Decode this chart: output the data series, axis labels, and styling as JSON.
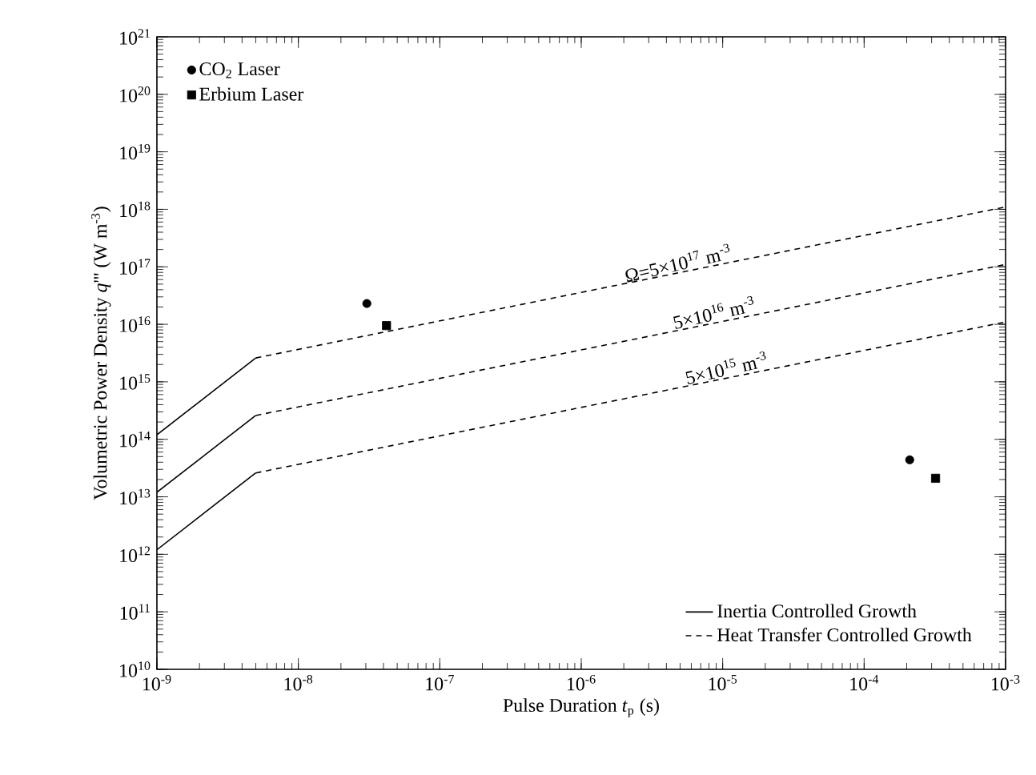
{
  "chart_data": {
    "type": "line",
    "xlabel": "Pulse Duration *t*$_{p}$ (s)",
    "ylabel": "Volumetric  Power Density *q*''' (W m$^{-3}$)",
    "log": "xy",
    "xlim": [
      1e-09,
      0.001
    ],
    "ylim": [
      10000000000.0,
      1e+21
    ],
    "xticks": [
      {
        "value": 1e-09,
        "label": "10$^{-9}$"
      },
      {
        "value": 1e-08,
        "label": "10$^{-8}$"
      },
      {
        "value": 1e-07,
        "label": "10$^{-7}$"
      },
      {
        "value": 1e-06,
        "label": "10$^{-6}$"
      },
      {
        "value": 1e-05,
        "label": "10$^{-5}$"
      },
      {
        "value": 0.0001,
        "label": "10$^{-4}$"
      },
      {
        "value": 0.001,
        "label": "10$^{-3}$"
      }
    ],
    "yticks": [
      {
        "value": 10000000000.0,
        "label": "10$^{10}$"
      },
      {
        "value": 100000000000.0,
        "label": "10$^{11}$"
      },
      {
        "value": 1000000000000.0,
        "label": "10$^{12}$"
      },
      {
        "value": 10000000000000.0,
        "label": "10$^{13}$"
      },
      {
        "value": 100000000000000.0,
        "label": "10$^{14}$"
      },
      {
        "value": 1000000000000000.0,
        "label": "10$^{15}$"
      },
      {
        "value": 1e+16,
        "label": "10$^{16}$"
      },
      {
        "value": 1e+17,
        "label": "10$^{17}$"
      },
      {
        "value": 1e+18,
        "label": "10$^{18}$"
      },
      {
        "value": 1e+19,
        "label": "10$^{19}$"
      },
      {
        "value": 1e+20,
        "label": "10$^{20}$"
      },
      {
        "value": 1e+21,
        "label": "10$^{21}$"
      }
    ],
    "grid": false,
    "legend": "top left",
    "series": [
      {
        "type": "scatter",
        "name": "CO$_{2}$ Laser",
        "color": "#000000",
        "marker": "circle",
        "x": [
          3.05e-08,
          0.00021
        ],
        "values": [
          2.3e+16,
          44000000000000.0
        ]
      },
      {
        "type": "scatter",
        "name": "Erbium Laser",
        "color": "#000000",
        "marker": "square",
        "x": [
          4.2e-08,
          0.00032
        ],
        "values": [
          9500000000000000.0,
          21000000000000.0
        ]
      },
      {
        "name": "Inertia Controlled Growth",
        "color": "#000000",
        "line_style": "solid",
        "x": [
          1e-09,
          5e-09
        ],
        "values": [
          120000000000000.0,
          2600000000000000.0
        ]
      },
      {
        "color": "#000000",
        "line_style": "solid",
        "x": [
          1e-09,
          5e-09
        ],
        "values": [
          12000000000000.0,
          260000000000000.0
        ]
      },
      {
        "color": "#000000",
        "line_style": "solid",
        "x": [
          1e-09,
          5e-09
        ],
        "values": [
          1200000000000.0,
          26000000000000.0
        ]
      },
      {
        "name": "Heat Transfer Controlled Growth",
        "color": "#000000",
        "line_style": "dashed",
        "x": [
          5e-09,
          0.001
        ],
        "values": [
          2600000000000000.0,
          1.1e+18
        ]
      },
      {
        "color": "#000000",
        "line_style": "dashed",
        "x": [
          5e-09,
          0.001
        ],
        "values": [
          260000000000000.0,
          1.1e+17
        ]
      },
      {
        "color": "#000000",
        "line_style": "dashed",
        "x": [
          5e-09,
          0.001
        ],
        "values": [
          26000000000000.0,
          1.1e+16
        ]
      }
    ],
    "annotations": [
      {
        "text": "Ω=5×10$^{17}$ m$^{-3}$",
        "x": 5e-06,
        "y": 8e+16
      },
      {
        "text": "5×10$^{16}$ m$^{-3}$",
        "x": 9e-06,
        "y": 1.1e+16
      },
      {
        "text": "5×10$^{15}$ m$^{-3}$",
        "x": 1.1e-05,
        "y": 1200000000000000.0
      }
    ]
  }
}
